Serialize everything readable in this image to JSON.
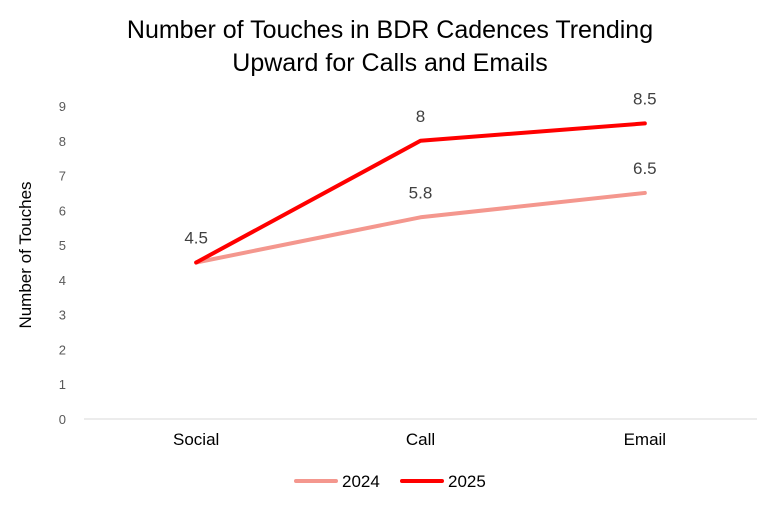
{
  "chart_data": {
    "type": "line",
    "title_lines": [
      "Number of Touches in BDR Cadences Trending",
      "Upward for Calls and Emails"
    ],
    "xlabel": "",
    "ylabel": "Number of Touches",
    "categories": [
      "Social",
      "Call",
      "Email"
    ],
    "ylim": [
      0,
      9
    ],
    "yticks": [
      0,
      1,
      2,
      3,
      4,
      5,
      6,
      7,
      8,
      9
    ],
    "grid": false,
    "legend_position": "bottom",
    "series": [
      {
        "name": "2024",
        "values": [
          4.5,
          5.8,
          6.5
        ],
        "labels": [
          "",
          "5.8",
          "6.5"
        ],
        "color": "#F4978E"
      },
      {
        "name": "2025",
        "values": [
          4.5,
          8,
          8.5
        ],
        "labels": [
          "4.5",
          "8",
          "8.5"
        ],
        "color": "#FF0000"
      }
    ]
  }
}
